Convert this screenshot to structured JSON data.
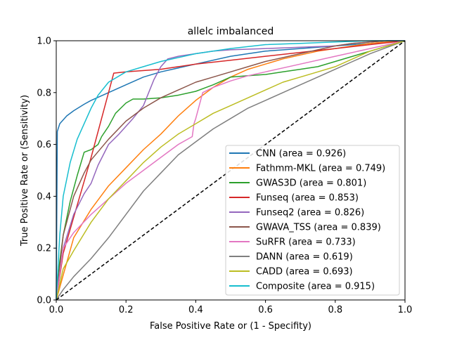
{
  "chart_data": {
    "type": "line",
    "title": "allelc imbalanced",
    "xlabel": "False Positive Rate or (1 - Specifity)",
    "ylabel": "True Positive Rate or (Sensitivity)",
    "xlim": [
      0,
      1
    ],
    "ylim": [
      0,
      1
    ],
    "xticks": [
      "0.0",
      "0.2",
      "0.4",
      "0.6",
      "0.8",
      "1.0"
    ],
    "yticks": [
      "0.0",
      "0.2",
      "0.4",
      "0.6",
      "0.8",
      "1.0"
    ],
    "grid": false,
    "legend_position": "lower-right",
    "diagonal": {
      "x": [
        0,
        1
      ],
      "y": [
        0,
        1
      ],
      "color": "#000000",
      "style": "dashed"
    },
    "series": [
      {
        "name": "CNN (area = 0.926)",
        "color": "#1f77b4",
        "x": [
          0,
          0.003,
          0.01,
          0.03,
          0.05,
          0.08,
          0.1,
          0.15,
          0.2,
          0.25,
          0.3,
          0.4,
          0.5,
          0.6,
          0.7,
          0.8,
          0.9,
          1.0
        ],
        "y": [
          0,
          0.65,
          0.68,
          0.71,
          0.73,
          0.755,
          0.77,
          0.8,
          0.83,
          0.86,
          0.88,
          0.91,
          0.94,
          0.96,
          0.97,
          0.98,
          0.99,
          1.0
        ]
      },
      {
        "name": "Fathmm-MKL (area = 0.749)",
        "color": "#ff7f0e",
        "x": [
          0,
          0.05,
          0.1,
          0.15,
          0.2,
          0.25,
          0.3,
          0.35,
          0.4,
          0.45,
          0.5,
          0.55,
          0.6,
          0.65,
          0.7,
          0.75,
          0.8,
          0.85,
          0.9,
          0.95,
          1.0
        ],
        "y": [
          0,
          0.24,
          0.35,
          0.44,
          0.51,
          0.58,
          0.64,
          0.71,
          0.77,
          0.82,
          0.86,
          0.89,
          0.91,
          0.93,
          0.945,
          0.96,
          0.97,
          0.98,
          0.99,
          0.995,
          1.0
        ]
      },
      {
        "name": "GWAS3D (area = 0.801)",
        "color": "#2ca02c",
        "x": [
          0,
          0.01,
          0.02,
          0.04,
          0.06,
          0.08,
          0.1,
          0.12,
          0.13,
          0.15,
          0.17,
          0.2,
          0.22,
          0.25,
          0.3,
          0.35,
          0.4,
          0.45,
          0.5,
          0.55,
          0.6,
          0.65,
          0.7,
          0.75,
          0.8,
          0.85,
          0.9,
          0.95,
          1.0
        ],
        "y": [
          0,
          0.15,
          0.25,
          0.38,
          0.48,
          0.57,
          0.58,
          0.6,
          0.63,
          0.67,
          0.72,
          0.76,
          0.775,
          0.775,
          0.78,
          0.79,
          0.805,
          0.83,
          0.86,
          0.865,
          0.87,
          0.88,
          0.89,
          0.9,
          0.92,
          0.94,
          0.96,
          0.98,
          1.0
        ]
      },
      {
        "name": "Funseq (area = 0.853)",
        "color": "#d62728",
        "x": [
          0,
          0.02,
          0.1,
          0.165,
          0.2,
          0.3,
          0.4,
          0.5,
          0.6,
          0.7,
          0.8,
          0.9,
          1.0
        ],
        "y": [
          0,
          0.18,
          0.55,
          0.875,
          0.88,
          0.89,
          0.91,
          0.925,
          0.94,
          0.955,
          0.97,
          0.985,
          1.0
        ]
      },
      {
        "name": "Funseq2 (area = 0.826)",
        "color": "#9467bd",
        "x": [
          0,
          0.02,
          0.05,
          0.08,
          0.1,
          0.12,
          0.15,
          0.18,
          0.2,
          0.22,
          0.25,
          0.28,
          0.3,
          0.32,
          0.35,
          0.4,
          0.45,
          0.5,
          0.6,
          0.7,
          0.8,
          0.85,
          0.9,
          0.95,
          1.0
        ],
        "y": [
          0,
          0.2,
          0.33,
          0.41,
          0.45,
          0.52,
          0.6,
          0.64,
          0.67,
          0.7,
          0.75,
          0.85,
          0.9,
          0.93,
          0.94,
          0.95,
          0.96,
          0.965,
          0.97,
          0.975,
          0.98,
          0.99,
          0.995,
          1.0,
          1.0
        ]
      },
      {
        "name": "GWAVA_TSS (area = 0.839)",
        "color": "#8c564b",
        "x": [
          0,
          0.02,
          0.05,
          0.08,
          0.1,
          0.15,
          0.2,
          0.25,
          0.3,
          0.35,
          0.4,
          0.45,
          0.5,
          0.55,
          0.6,
          0.65,
          0.7,
          0.75,
          0.8,
          0.85,
          0.9,
          0.95,
          1.0
        ],
        "y": [
          0,
          0.25,
          0.4,
          0.49,
          0.54,
          0.62,
          0.69,
          0.74,
          0.78,
          0.81,
          0.84,
          0.86,
          0.88,
          0.9,
          0.92,
          0.935,
          0.95,
          0.965,
          0.98,
          0.99,
          0.995,
          1.0,
          1.0
        ]
      },
      {
        "name": "SuRFR (area = 0.733)",
        "color": "#e377c2",
        "x": [
          0,
          0.02,
          0.05,
          0.1,
          0.15,
          0.2,
          0.25,
          0.3,
          0.35,
          0.39,
          0.395,
          0.4,
          0.42,
          0.45,
          0.5,
          0.55,
          0.6,
          0.7,
          0.8,
          0.9,
          1.0
        ],
        "y": [
          0,
          0.2,
          0.26,
          0.33,
          0.39,
          0.45,
          0.5,
          0.55,
          0.6,
          0.63,
          0.68,
          0.7,
          0.8,
          0.82,
          0.845,
          0.865,
          0.88,
          0.91,
          0.94,
          0.97,
          1.0
        ]
      },
      {
        "name": "DANN (area = 0.619)",
        "color": "#7f7f7f",
        "x": [
          0,
          0.02,
          0.05,
          0.1,
          0.15,
          0.2,
          0.25,
          0.3,
          0.35,
          0.4,
          0.45,
          0.5,
          0.55,
          0.6,
          0.65,
          0.7,
          0.75,
          0.8,
          0.85,
          0.9,
          0.95,
          1.0
        ],
        "y": [
          0,
          0.04,
          0.09,
          0.16,
          0.24,
          0.33,
          0.42,
          0.49,
          0.56,
          0.61,
          0.66,
          0.7,
          0.74,
          0.77,
          0.8,
          0.83,
          0.86,
          0.89,
          0.92,
          0.95,
          0.975,
          1.0
        ]
      },
      {
        "name": "CADD (area = 0.693)",
        "color": "#bcbd22",
        "x": [
          0,
          0.02,
          0.05,
          0.1,
          0.15,
          0.2,
          0.25,
          0.3,
          0.35,
          0.4,
          0.45,
          0.5,
          0.55,
          0.6,
          0.65,
          0.7,
          0.75,
          0.8,
          0.85,
          0.9,
          0.95,
          1.0
        ],
        "y": [
          0,
          0.12,
          0.19,
          0.3,
          0.39,
          0.46,
          0.53,
          0.59,
          0.64,
          0.68,
          0.72,
          0.75,
          0.78,
          0.81,
          0.84,
          0.86,
          0.88,
          0.9,
          0.93,
          0.96,
          0.98,
          1.0
        ]
      },
      {
        "name": "Composite (area = 0.915)",
        "color": "#17becf",
        "x": [
          0,
          0.01,
          0.02,
          0.04,
          0.06,
          0.08,
          0.1,
          0.12,
          0.15,
          0.2,
          0.25,
          0.3,
          0.4,
          0.5,
          0.6,
          0.7,
          0.8,
          0.9,
          1.0
        ],
        "y": [
          0,
          0.25,
          0.4,
          0.53,
          0.62,
          0.68,
          0.74,
          0.79,
          0.84,
          0.88,
          0.9,
          0.92,
          0.95,
          0.97,
          0.985,
          0.99,
          0.995,
          1.0,
          1.0
        ]
      }
    ]
  }
}
